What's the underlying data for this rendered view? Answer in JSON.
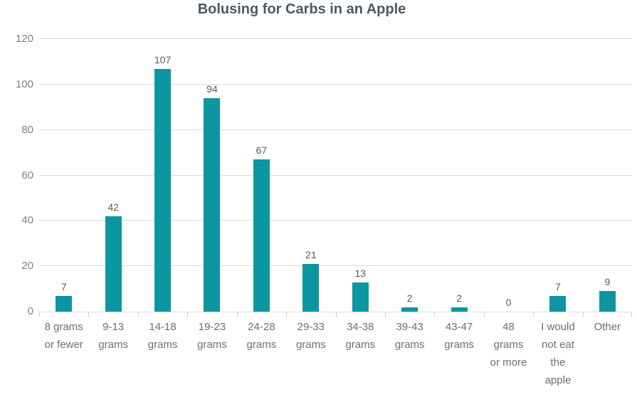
{
  "title": "Bolusing for Carbs in an Apple",
  "colors": {
    "bar": "#0B96A1",
    "gridline": "#D9D9D9",
    "axis_line": "#D9D9D9",
    "tick_mark": "#C9C9C9",
    "title_text": "#4A5A66",
    "value_label_text": "#595959",
    "x_tick_text": "#6E6E6E",
    "y_tick_text": "#7F7F7F",
    "background": "#FFFFFF"
  },
  "chart_data": {
    "type": "bar",
    "title": "Bolusing for Carbs in an Apple",
    "categories": [
      "8 grams or fewer",
      "9-13 grams",
      "14-18 grams",
      "19-23 grams",
      "24-28 grams",
      "29-33 grams",
      "34-38 grams",
      "39-43 grams",
      "43-47 grams",
      "48 grams or more",
      "I would not eat the apple",
      "Other"
    ],
    "values": [
      7,
      42,
      107,
      94,
      67,
      21,
      13,
      2,
      2,
      0,
      7,
      9
    ],
    "tick_label_lines": [
      [
        "8 grams",
        "or fewer"
      ],
      [
        "9-13",
        "grams"
      ],
      [
        "14-18",
        "grams"
      ],
      [
        "19-23",
        "grams"
      ],
      [
        "24-28",
        "grams"
      ],
      [
        "29-33",
        "grams"
      ],
      [
        "34-38",
        "grams"
      ],
      [
        "39-43",
        "grams"
      ],
      [
        "43-47",
        "grams"
      ],
      [
        "48",
        "grams",
        "or more"
      ],
      [
        "I would",
        "not eat",
        "the",
        "apple"
      ],
      [
        "Other"
      ]
    ],
    "xlabel": "",
    "ylabel": "",
    "ylim": [
      0,
      120
    ],
    "yticks": [
      0,
      20,
      40,
      60,
      80,
      100,
      120
    ],
    "grid": "horizontal",
    "legend": "none",
    "data_labels": true,
    "bar_color": "#0B96A1"
  }
}
